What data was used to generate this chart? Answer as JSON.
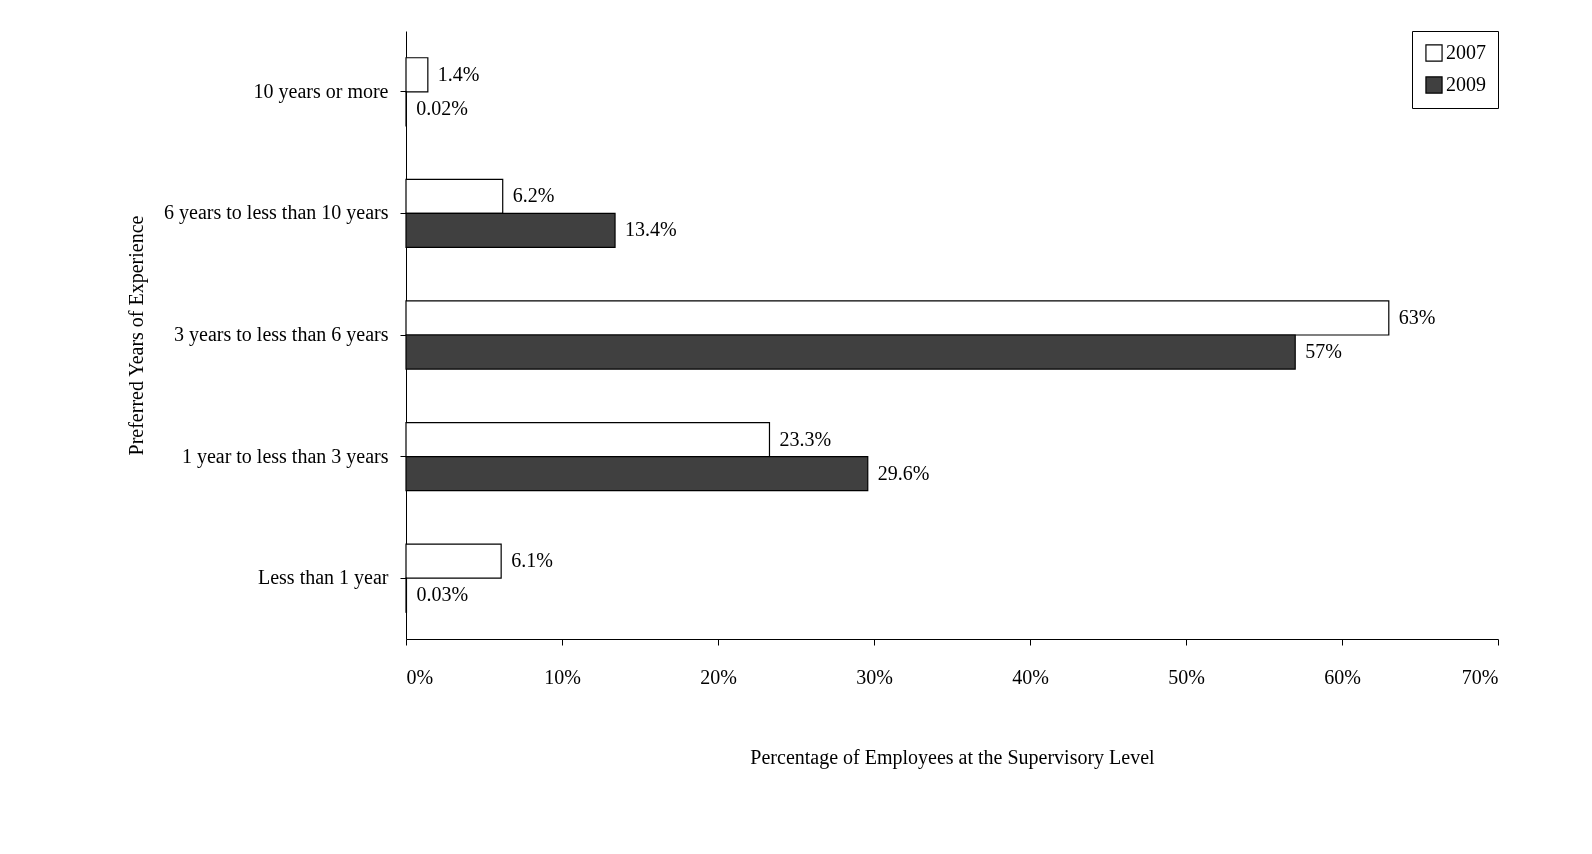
{
  "chart_data": {
    "type": "bar",
    "orientation": "horizontal",
    "xlabel": "Percentage of Employees at the Supervisory Level",
    "ylabel": "Preferred Years of Experience",
    "categories": [
      "10 years or more",
      "6 years to less than 10 years",
      "3 years to less than 6 years",
      "1 year to less than 3 years",
      "Less than 1 year"
    ],
    "series": [
      {
        "name": "2007",
        "color": "#ffffff",
        "values": [
          1.4,
          6.2,
          63,
          23.3,
          6.1
        ],
        "value_labels": [
          "1.4%",
          "6.2%",
          "63%",
          "23.3%",
          "6.1%"
        ]
      },
      {
        "name": "2009",
        "color": "#404040",
        "values": [
          0.02,
          13.4,
          57,
          29.6,
          0.03
        ],
        "value_labels": [
          "0.02%",
          "13.4%",
          "57%",
          "29.6%",
          "0.03%"
        ]
      }
    ],
    "xlim": [
      0,
      70
    ],
    "xticks": [
      {
        "value": 0,
        "label": "0%"
      },
      {
        "value": 10,
        "label": "10%"
      },
      {
        "value": 20,
        "label": "20%"
      },
      {
        "value": 30,
        "label": "30%"
      },
      {
        "value": 40,
        "label": "40%"
      },
      {
        "value": 50,
        "label": "50%"
      },
      {
        "value": 60,
        "label": "60%"
      },
      {
        "value": 70,
        "label": "70%"
      }
    ],
    "legend": "top right",
    "grid": false
  }
}
